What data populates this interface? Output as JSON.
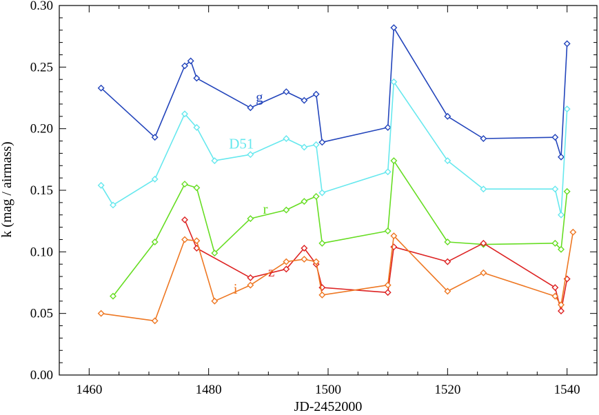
{
  "chart_data": {
    "type": "line",
    "xlabel": "JD-2452000",
    "ylabel": "k (mag / airmass)",
    "xlim": [
      1455,
      1545
    ],
    "ylim": [
      0.0,
      0.3
    ],
    "x_ticks": [
      "1460",
      "1480",
      "1500",
      "1520",
      "1540"
    ],
    "y_ticks": [
      "0.00",
      "0.05",
      "0.10",
      "0.15",
      "0.20",
      "0.25",
      "0.30"
    ],
    "marker": "diamond",
    "series": [
      {
        "name": "g",
        "color": "#2244bb",
        "label_at": [
          1488.5,
          0.222
        ],
        "points": [
          [
            1462,
            0.233
          ],
          [
            1471,
            0.193
          ],
          [
            1476,
            0.251
          ],
          [
            1477,
            0.255
          ],
          [
            1478,
            0.241
          ],
          [
            1487,
            0.217
          ],
          [
            1493,
            0.23
          ],
          [
            1496,
            0.223
          ],
          [
            1498,
            0.228
          ],
          [
            1499,
            0.189
          ],
          [
            1510,
            0.201
          ],
          [
            1511,
            0.282
          ],
          [
            1520,
            0.21
          ],
          [
            1526,
            0.192
          ],
          [
            1538,
            0.193
          ],
          [
            1539,
            0.177
          ],
          [
            1540,
            0.269
          ]
        ]
      },
      {
        "name": "D51",
        "color": "#66e8ee",
        "label_at": [
          1485.5,
          0.184
        ],
        "points": [
          [
            1462,
            0.154
          ],
          [
            1464,
            0.138
          ],
          [
            1471,
            0.159
          ],
          [
            1476,
            0.212
          ],
          [
            1478,
            0.201
          ],
          [
            1481,
            0.174
          ],
          [
            1487,
            0.179
          ],
          [
            1493,
            0.192
          ],
          [
            1496,
            0.185
          ],
          [
            1498,
            0.187
          ],
          [
            1499,
            0.148
          ],
          [
            1510,
            0.165
          ],
          [
            1511,
            0.238
          ],
          [
            1520,
            0.174
          ],
          [
            1526,
            0.151
          ],
          [
            1538,
            0.151
          ],
          [
            1539,
            0.13
          ],
          [
            1540,
            0.216
          ]
        ]
      },
      {
        "name": "r",
        "color": "#66dd22",
        "label_at": [
          1489.5,
          0.131
        ],
        "points": [
          [
            1464,
            0.064
          ],
          [
            1471,
            0.108
          ],
          [
            1476,
            0.155
          ],
          [
            1478,
            0.152
          ],
          [
            1481,
            0.099
          ],
          [
            1487,
            0.127
          ],
          [
            1493,
            0.134
          ],
          [
            1496,
            0.141
          ],
          [
            1498,
            0.145
          ],
          [
            1499,
            0.107
          ],
          [
            1510,
            0.117
          ],
          [
            1511,
            0.174
          ],
          [
            1520,
            0.108
          ],
          [
            1526,
            0.106
          ],
          [
            1538,
            0.107
          ],
          [
            1539,
            0.102
          ],
          [
            1540,
            0.149
          ]
        ]
      },
      {
        "name": "z",
        "color": "#dd2222",
        "label_at": [
          1490.5,
          0.08
        ],
        "points": [
          [
            1476,
            0.126
          ],
          [
            1478,
            0.103
          ],
          [
            1487,
            0.079
          ],
          [
            1493,
            0.086
          ],
          [
            1496,
            0.103
          ],
          [
            1498,
            0.09
          ],
          [
            1499,
            0.071
          ],
          [
            1510,
            0.067
          ],
          [
            1511,
            0.104
          ],
          [
            1520,
            0.092
          ],
          [
            1526,
            0.107
          ],
          [
            1538,
            0.071
          ],
          [
            1539,
            0.052
          ],
          [
            1540,
            0.078
          ]
        ]
      },
      {
        "name": "i",
        "color": "#ee7722",
        "label_at": [
          1484.5,
          0.066
        ],
        "points": [
          [
            1462,
            0.05
          ],
          [
            1471,
            0.044
          ],
          [
            1476,
            0.11
          ],
          [
            1478,
            0.109
          ],
          [
            1481,
            0.06
          ],
          [
            1487,
            0.073
          ],
          [
            1493,
            0.092
          ],
          [
            1496,
            0.094
          ],
          [
            1498,
            0.092
          ],
          [
            1499,
            0.065
          ],
          [
            1510,
            0.073
          ],
          [
            1511,
            0.113
          ],
          [
            1520,
            0.068
          ],
          [
            1526,
            0.083
          ],
          [
            1538,
            0.064
          ],
          [
            1539,
            0.057
          ],
          [
            1541,
            0.116
          ]
        ]
      }
    ]
  }
}
